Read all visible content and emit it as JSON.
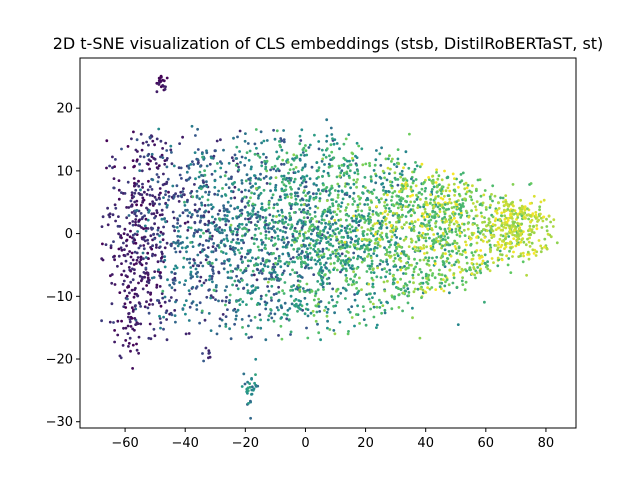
{
  "chart_data": {
    "type": "scatter",
    "title": "2D t-SNE visualization of CLS embeddings (stsb, DistilRoBERTaST, st)",
    "xlabel": "",
    "ylabel": "",
    "xlim": [
      -75,
      90
    ],
    "ylim": [
      -31,
      28
    ],
    "xticks": [
      -60,
      -40,
      -20,
      0,
      20,
      40,
      60,
      80
    ],
    "yticks": [
      -30,
      -20,
      -10,
      0,
      10,
      20
    ],
    "xtick_labels": [
      "−60",
      "−40",
      "−20",
      "0",
      "20",
      "40",
      "60",
      "80"
    ],
    "ytick_labels": [
      "−30",
      "−20",
      "−10",
      "0",
      "10",
      "20"
    ],
    "grid": false,
    "legend": "none",
    "colormap": [
      "#440154",
      "#3b528b",
      "#21918c",
      "#5ec962",
      "#fde725"
    ],
    "clusters": [
      {
        "cx": -55,
        "cy": 0,
        "sx": 6,
        "sy": 8,
        "n": 400,
        "c0": 0.0,
        "c1": 0.2
      },
      {
        "cx": -35,
        "cy": 0,
        "sx": 10,
        "sy": 8,
        "n": 500,
        "c0": 0.1,
        "c1": 0.5
      },
      {
        "cx": -10,
        "cy": 0,
        "sx": 14,
        "sy": 8,
        "n": 900,
        "c0": 0.2,
        "c1": 0.7
      },
      {
        "cx": 15,
        "cy": 0,
        "sx": 14,
        "sy": 8,
        "n": 900,
        "c0": 0.4,
        "c1": 0.85
      },
      {
        "cx": 45,
        "cy": 1,
        "sx": 12,
        "sy": 6,
        "n": 800,
        "c0": 0.6,
        "c1": 1.0
      },
      {
        "cx": 70,
        "cy": 1,
        "sx": 6,
        "sy": 3,
        "n": 300,
        "c0": 0.8,
        "c1": 1.0
      },
      {
        "cx": -48,
        "cy": 24,
        "sx": 0.8,
        "sy": 0.8,
        "n": 25,
        "c0": 0.0,
        "c1": 0.1
      },
      {
        "cx": -18,
        "cy": -25,
        "sx": 1.2,
        "sy": 1.5,
        "n": 30,
        "c0": 0.3,
        "c1": 0.6
      },
      {
        "cx": -58,
        "cy": -15,
        "sx": 3,
        "sy": 3,
        "n": 40,
        "c0": 0.0,
        "c1": 0.15
      },
      {
        "cx": -32,
        "cy": -19,
        "sx": 1,
        "sy": 1,
        "n": 8,
        "c0": 0.1,
        "c1": 0.3
      }
    ]
  }
}
